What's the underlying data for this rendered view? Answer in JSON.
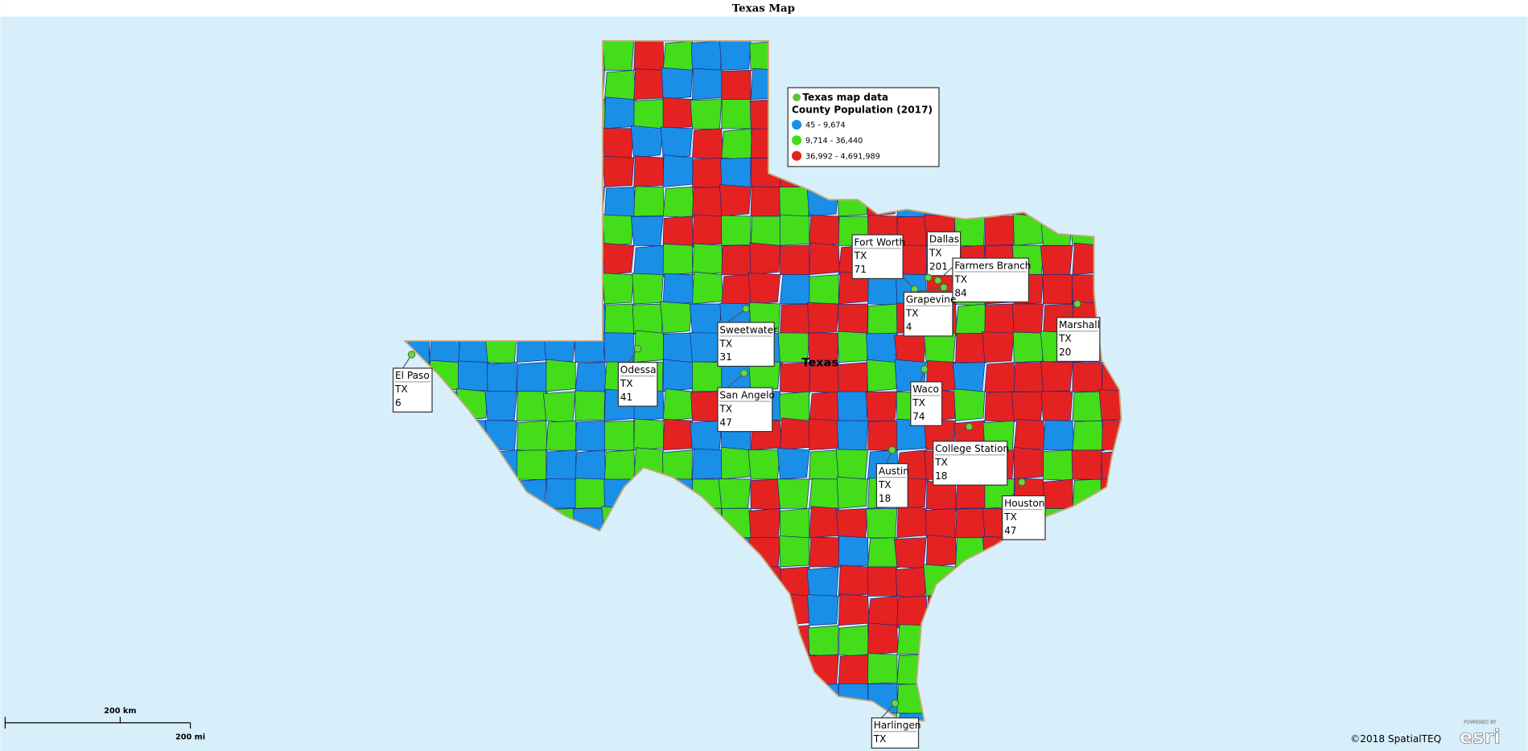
{
  "title": "Texas Map",
  "legend": {
    "layer": "Texas map data",
    "field": "County Population (2017)",
    "classes": [
      "45 - 9,674",
      "9,714 - 36,440",
      "36,992 - 4,691,989"
    ]
  },
  "state_label": "Texas",
  "callouts": [
    {
      "name": "El Paso",
      "state": "TX",
      "value": "6"
    },
    {
      "name": "Odessa",
      "state": "TX",
      "value": "41"
    },
    {
      "name": "Sweetwater",
      "state": "TX",
      "value": "31"
    },
    {
      "name": "San Angelo",
      "state": "TX",
      "value": "47"
    },
    {
      "name": "Fort Worth",
      "state": "TX",
      "value": "71"
    },
    {
      "name": "Dallas",
      "state": "TX",
      "value": "201"
    },
    {
      "name": "Farmers Branch",
      "state": "TX",
      "value": "84"
    },
    {
      "name": "Grapevine",
      "state": "TX",
      "value": "4"
    },
    {
      "name": "Marshall",
      "state": "TX",
      "value": "20"
    },
    {
      "name": "Waco",
      "state": "TX",
      "value": "74"
    },
    {
      "name": "College Station",
      "state": "TX",
      "value": "18"
    },
    {
      "name": "Austin",
      "state": "TX",
      "value": "18"
    },
    {
      "name": "Houston",
      "state": "TX",
      "value": "47"
    },
    {
      "name": "Harlingen",
      "state": "TX"
    }
  ],
  "scale": {
    "km": "200 km",
    "mi": "200 mi"
  },
  "copyright": "©2018 SpatialTEQ",
  "powered": "POWERED BY",
  "brand": "esri"
}
